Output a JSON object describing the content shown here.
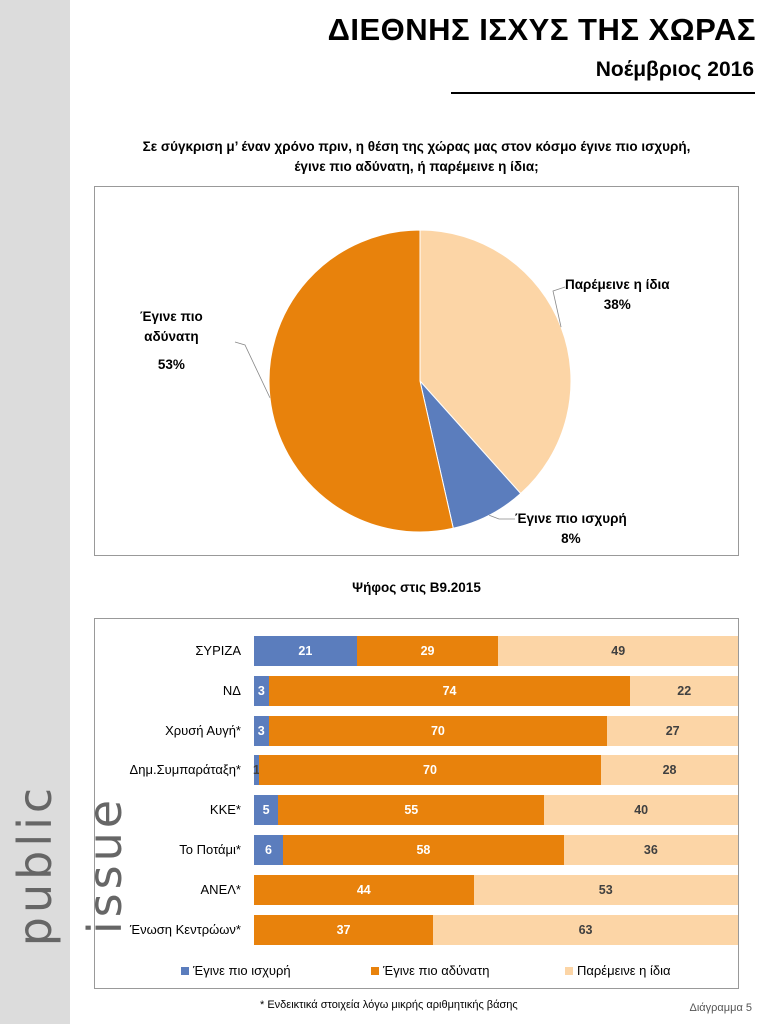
{
  "header": {
    "title": "ΔΙΕΘΝΗΣ ΙΣΧΥΣ ΤΗΣ ΧΩΡΑΣ",
    "subtitle": "Νοέμβριος 2016"
  },
  "brand": "public issue",
  "question": {
    "line1": "Σε σύγκριση μ’ έναν χρόνο πριν, η θέση της χώρας μας στον κόσμο έγινε πιο ισχυρή,",
    "line2": "έγινε πιο αδύνατη, ή παρέμεινε η ίδια;"
  },
  "chart_data": [
    {
      "type": "pie",
      "slices": [
        {
          "label": "Έγινε πιο ισχυρή",
          "value": 8,
          "display": "8%",
          "color": "#5b7dbd"
        },
        {
          "label": "Έγινε πιο αδύνατη",
          "value": 53,
          "display": "53%",
          "color": "#e8820c",
          "label_lines": [
            "Έγινε πιο",
            "αδύνατη"
          ]
        },
        {
          "label": "Παρέμεινε η ίδια",
          "value": 38,
          "display": "38%",
          "color": "#fcd5a6"
        }
      ]
    },
    {
      "type": "bar",
      "orientation": "horizontal",
      "stacked": true,
      "title": "Ψήφος στις Β9.2015",
      "categories": [
        "ΣΥΡΙΖΑ",
        "ΝΔ",
        "Χρυσή Αυγή*",
        "Δημ.Συμπαράταξη*",
        "ΚΚΕ*",
        "Το Ποτάμι*",
        "ΑΝΕΛ*",
        "Ένωση Κεντρώων*"
      ],
      "series": [
        {
          "name": "Έγινε πιο ισχυρή",
          "color": "#5b7dbd",
          "values": [
            21,
            3,
            3,
            1,
            5,
            6,
            0,
            0
          ]
        },
        {
          "name": "Έγινε πιο αδύνατη",
          "color": "#e8820c",
          "values": [
            29,
            74,
            70,
            70,
            55,
            58,
            44,
            37
          ]
        },
        {
          "name": "Παρέμεινε η ίδια",
          "color": "#fcd5a6",
          "values": [
            49,
            22,
            27,
            28,
            40,
            36,
            53,
            63
          ]
        }
      ],
      "legend_position": "bottom"
    }
  ],
  "footnote": "* Ενδεικτικά στοιχεία λόγω μικρής αριθμητικής βάσης",
  "page_number": "Διάγραμμα 5"
}
